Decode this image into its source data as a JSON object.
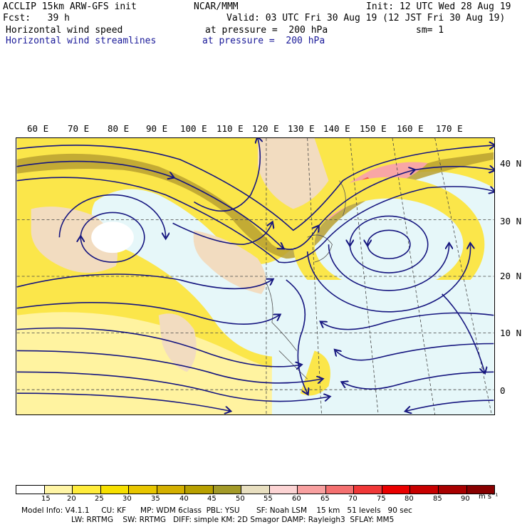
{
  "header": {
    "line1_left": "ACCLIP 15km ARW-GFS init",
    "line1_center": "NCAR/MMM",
    "line1_right": "Init: 12 UTC Wed 28 Aug 19",
    "line2_fcst": "Fcst:   39 h",
    "line2_valid": "Valid: 03 UTC Fri 30 Aug 19 (12 JST Fri 30 Aug 19)",
    "line3_field": "Horizontal wind speed",
    "line3_level": "at pressure =  200 hPa",
    "line3_sm": "sm= 1",
    "line4_field": "Horizontal wind streamlines",
    "line4_level": "at pressure =  200 hPa"
  },
  "map": {
    "lon_labels": [
      "60 E",
      "70 E",
      "80 E",
      "90 E",
      "100 E",
      "110 E",
      "120 E",
      "130 E",
      "140 E",
      "150 E",
      "160 E",
      "170 E"
    ],
    "lat_labels": [
      "40 N",
      "30 N",
      "20 N",
      "10 N",
      "0"
    ]
  },
  "colorbar": {
    "unit": "m s⁻¹",
    "labels": [
      "15",
      "20",
      "25",
      "30",
      "35",
      "40",
      "45",
      "50",
      "55",
      "60",
      "65",
      "70",
      "75",
      "80",
      "85",
      "90"
    ],
    "colors": [
      "#ffffff",
      "#fff5a6",
      "#ffec3c",
      "#f7e000",
      "#e8c600",
      "#d4b000",
      "#b8a000",
      "#a39a28",
      "#e8dfc0",
      "#fcd4d4",
      "#f8a0a0",
      "#f47070",
      "#f03838",
      "#ea0000",
      "#c80000",
      "#a80000",
      "#880000"
    ]
  },
  "colors": {
    "ocean": "#e6f7f9",
    "land_low": "#f2dcc0",
    "streamline": "#15157f"
  },
  "footer": {
    "line1": "Model Info: V4.1.1     CU: KF      MP: WDM 6class  PBL: YSU       SF: Noah LSM    15 km   51 levels   90 sec",
    "line2": "LW: RRTMG    SW: RRTMG   DIFF: simple KM: 2D Smagor DAMP: Rayleigh3  SFLAY: MM5"
  }
}
